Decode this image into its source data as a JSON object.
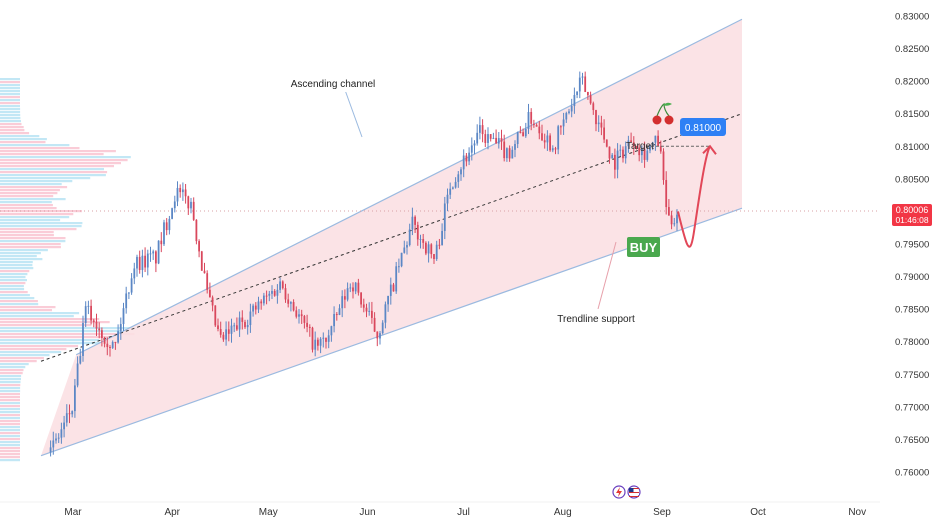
{
  "chart_data": {
    "type": "candlestick",
    "x_months": [
      "Mar",
      "Apr",
      "May",
      "Jun",
      "Jul",
      "Aug",
      "Sep",
      "Oct",
      "Nov"
    ],
    "y_ticks": [
      0.83,
      0.825,
      0.82,
      0.815,
      0.81,
      0.805,
      0.8,
      0.795,
      0.79,
      0.785,
      0.78,
      0.775,
      0.77,
      0.765,
      0.76
    ],
    "ylim": [
      0.7585,
      0.832
    ],
    "grid": false,
    "colors": {
      "up": "#5b87c5",
      "down": "#d9475c",
      "channel_fill": "#fbe0e3",
      "channel_line": "#9bbae0",
      "projection": "#e24758",
      "target_badge": "#2e80f5",
      "buy_badge": "#4aa84e",
      "price_badge": "#f23645"
    },
    "price_path": [
      {
        "date": "2024-02-23",
        "price": 0.763
      },
      {
        "date": "2024-03-01",
        "price": 0.77
      },
      {
        "date": "2024-03-05",
        "price": 0.785
      },
      {
        "date": "2024-03-14",
        "price": 0.779
      },
      {
        "date": "2024-03-20",
        "price": 0.792
      },
      {
        "date": "2024-03-27",
        "price": 0.793
      },
      {
        "date": "2024-04-02",
        "price": 0.803
      },
      {
        "date": "2024-04-07",
        "price": 0.801
      },
      {
        "date": "2024-04-12",
        "price": 0.787
      },
      {
        "date": "2024-04-16",
        "price": 0.78
      },
      {
        "date": "2024-04-27",
        "price": 0.785
      },
      {
        "date": "2024-05-05",
        "price": 0.789
      },
      {
        "date": "2024-05-16",
        "price": 0.779
      },
      {
        "date": "2024-05-20",
        "price": 0.781
      },
      {
        "date": "2024-05-27",
        "price": 0.7895
      },
      {
        "date": "2024-06-04",
        "price": 0.781
      },
      {
        "date": "2024-06-15",
        "price": 0.798
      },
      {
        "date": "2024-06-22",
        "price": 0.7925
      },
      {
        "date": "2024-06-27",
        "price": 0.8045
      },
      {
        "date": "2024-07-06",
        "price": 0.812
      },
      {
        "date": "2024-07-15",
        "price": 0.809
      },
      {
        "date": "2024-07-22",
        "price": 0.8145
      },
      {
        "date": "2024-07-29",
        "price": 0.81
      },
      {
        "date": "2024-08-07",
        "price": 0.82
      },
      {
        "date": "2024-08-17",
        "price": 0.8075
      },
      {
        "date": "2024-08-23",
        "price": 0.8115
      },
      {
        "date": "2024-08-26",
        "price": 0.809
      },
      {
        "date": "2024-08-31",
        "price": 0.8108
      },
      {
        "date": "2024-09-03",
        "price": 0.798
      },
      {
        "date": "2024-09-06",
        "price": 0.8
      }
    ],
    "projection_path": [
      {
        "date": "2024-09-06",
        "price": 0.8
      },
      {
        "date": "2024-09-09",
        "price": 0.7965
      },
      {
        "date": "2024-09-13",
        "price": 0.804
      },
      {
        "date": "2024-09-16",
        "price": 0.81
      }
    ],
    "channel": {
      "upper": [
        {
          "date": "2024-03-02",
          "price": 0.778
        },
        {
          "date": "2024-09-26",
          "price": 0.8295
        }
      ],
      "lower": [
        {
          "date": "2024-02-20",
          "price": 0.7625
        },
        {
          "date": "2024-09-26",
          "price": 0.8005
        }
      ],
      "mid": [
        {
          "date": "2024-02-20",
          "price": 0.777
        },
        {
          "date": "2024-09-26",
          "price": 0.815
        }
      ]
    },
    "annotations": {
      "channel_label": "Ascending channel",
      "target_label": "Target",
      "target_price": "0.81000",
      "buy_label": "BUY",
      "support_label": "Trendline support",
      "cherry_icon": "cherry-icon"
    },
    "last_price": "0.80006",
    "countdown": "01:46:08",
    "event_icons": [
      "lightning-icon",
      "us-flag-icon"
    ]
  }
}
